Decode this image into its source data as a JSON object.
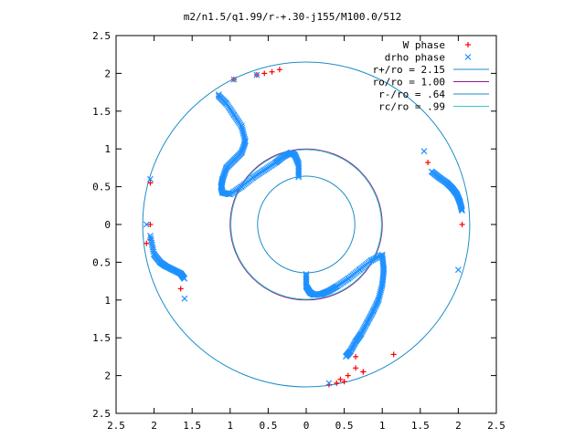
{
  "chart_data": {
    "type": "scatter",
    "title": "m2/n1.5/q1.99/r-+.30-j155/M100.0/512",
    "xlim": [
      -2.5,
      2.5
    ],
    "ylim": [
      -2.5,
      2.5
    ],
    "x_ticks": [
      -2.5,
      -2,
      -1.5,
      -1,
      -0.5,
      0,
      0.5,
      1,
      1.5,
      2,
      2.5
    ],
    "y_ticks": [
      -2.5,
      -2,
      -1.5,
      -1,
      -0.5,
      0,
      0.5,
      1,
      1.5,
      2,
      2.5
    ],
    "x_tick_labels": [
      "2.5",
      "2",
      "1.5",
      "1",
      "0.5",
      "0",
      "0.5",
      "1",
      "1.5",
      "2",
      "2.5"
    ],
    "y_tick_labels": [
      "2.5",
      "2",
      "1.5",
      "1",
      "0.5",
      "0",
      "0.5",
      "1",
      "1.5",
      "2",
      "2.5"
    ],
    "grid": false,
    "legend_position": "top-right",
    "colors": {
      "w_phase": "#ff0000",
      "drho_phase": "#1e90ff",
      "circle_outer": "#1e8ec8",
      "circle_ro": "#8b1a8b",
      "circle_inner": "#1e8ec8",
      "circle_corot": "#3cc8c8"
    },
    "circles": [
      {
        "label": "r+/ro = 2.15",
        "r": 2.15,
        "color_key": "circle_outer"
      },
      {
        "label": "ro/ro = 1.00",
        "r": 1.0,
        "color_key": "circle_ro"
      },
      {
        "label": "r-/ro = .64",
        "r": 0.64,
        "color_key": "circle_inner"
      },
      {
        "label": "rc/ro = .99",
        "r": 0.99,
        "color_key": "circle_corot"
      }
    ],
    "series": [
      {
        "name": "W phase",
        "marker": "plus",
        "color_key": "w_phase",
        "x": [
          -1.15,
          -0.95,
          -0.65,
          -0.55,
          -0.45,
          -0.35,
          -0.9,
          -1.05,
          -2.05,
          -2.05,
          -2.1,
          -2.05,
          -1.65,
          1.6,
          2.05,
          0.65,
          0.4,
          0.45,
          0.55,
          0.65,
          0.75,
          1.15,
          0.3,
          0.5,
          0.75
        ],
        "y": [
          1.7,
          1.92,
          1.98,
          2.0,
          2.02,
          2.05,
          0.45,
          0.4,
          0.55,
          -0.2,
          -0.25,
          0.0,
          -0.85,
          0.82,
          0.0,
          -1.75,
          -2.1,
          -2.05,
          -2.0,
          -1.9,
          -1.95,
          -1.72,
          -2.12,
          -2.08,
          -1.95
        ]
      },
      {
        "name": "drho phase",
        "marker": "x",
        "color_key": "drho_phase",
        "x": [
          -1.15,
          -0.95,
          -0.65,
          -2.05,
          -2.1,
          -1.6,
          1.55,
          2.0,
          0.3
        ],
        "y": [
          1.72,
          1.92,
          1.98,
          0.6,
          0.0,
          -0.98,
          0.97,
          -0.6,
          -2.1
        ]
      }
    ],
    "arms": [
      {
        "series": "drho phase",
        "x": [
          -1.15,
          -1.05,
          -0.95,
          -0.85,
          -0.8,
          -0.85,
          -0.95,
          -1.05,
          -1.1,
          -1.12,
          -1.1,
          -1.0
        ],
        "y": [
          1.7,
          1.6,
          1.45,
          1.3,
          1.1,
          0.95,
          0.85,
          0.75,
          0.6,
          0.5,
          0.42,
          0.4
        ]
      },
      {
        "series": "drho phase",
        "x": [
          -1.0,
          -0.85,
          -0.7,
          -0.55,
          -0.4,
          -0.3,
          -0.2,
          -0.15,
          -0.1,
          -0.1
        ],
        "y": [
          0.4,
          0.5,
          0.62,
          0.72,
          0.82,
          0.9,
          0.95,
          0.92,
          0.8,
          0.62
        ]
      },
      {
        "series": "drho phase",
        "x": [
          -2.05,
          -2.0,
          -1.92,
          -1.85,
          -1.75,
          -1.65,
          -1.6
        ],
        "y": [
          -0.15,
          -0.4,
          -0.5,
          -0.55,
          -0.6,
          -0.65,
          -0.72
        ]
      },
      {
        "series": "drho phase",
        "x": [
          1.65,
          1.75,
          1.85,
          1.92,
          1.98,
          2.02,
          2.05
        ],
        "y": [
          0.7,
          0.62,
          0.55,
          0.48,
          0.4,
          0.3,
          0.18
        ]
      },
      {
        "series": "drho phase",
        "x": [
          1.0,
          1.02,
          1.0,
          0.95,
          0.88,
          0.8,
          0.72,
          0.65,
          0.58,
          0.52
        ],
        "y": [
          -0.42,
          -0.6,
          -0.8,
          -1.0,
          -1.15,
          -1.3,
          -1.45,
          -1.55,
          -1.68,
          -1.75
        ]
      },
      {
        "series": "drho phase",
        "x": [
          1.0,
          0.85,
          0.7,
          0.55,
          0.4,
          0.3,
          0.2,
          0.1,
          0.05,
          0.0,
          0.0
        ],
        "y": [
          -0.4,
          -0.48,
          -0.6,
          -0.72,
          -0.82,
          -0.88,
          -0.92,
          -0.93,
          -0.9,
          -0.82,
          -0.65
        ]
      }
    ]
  }
}
